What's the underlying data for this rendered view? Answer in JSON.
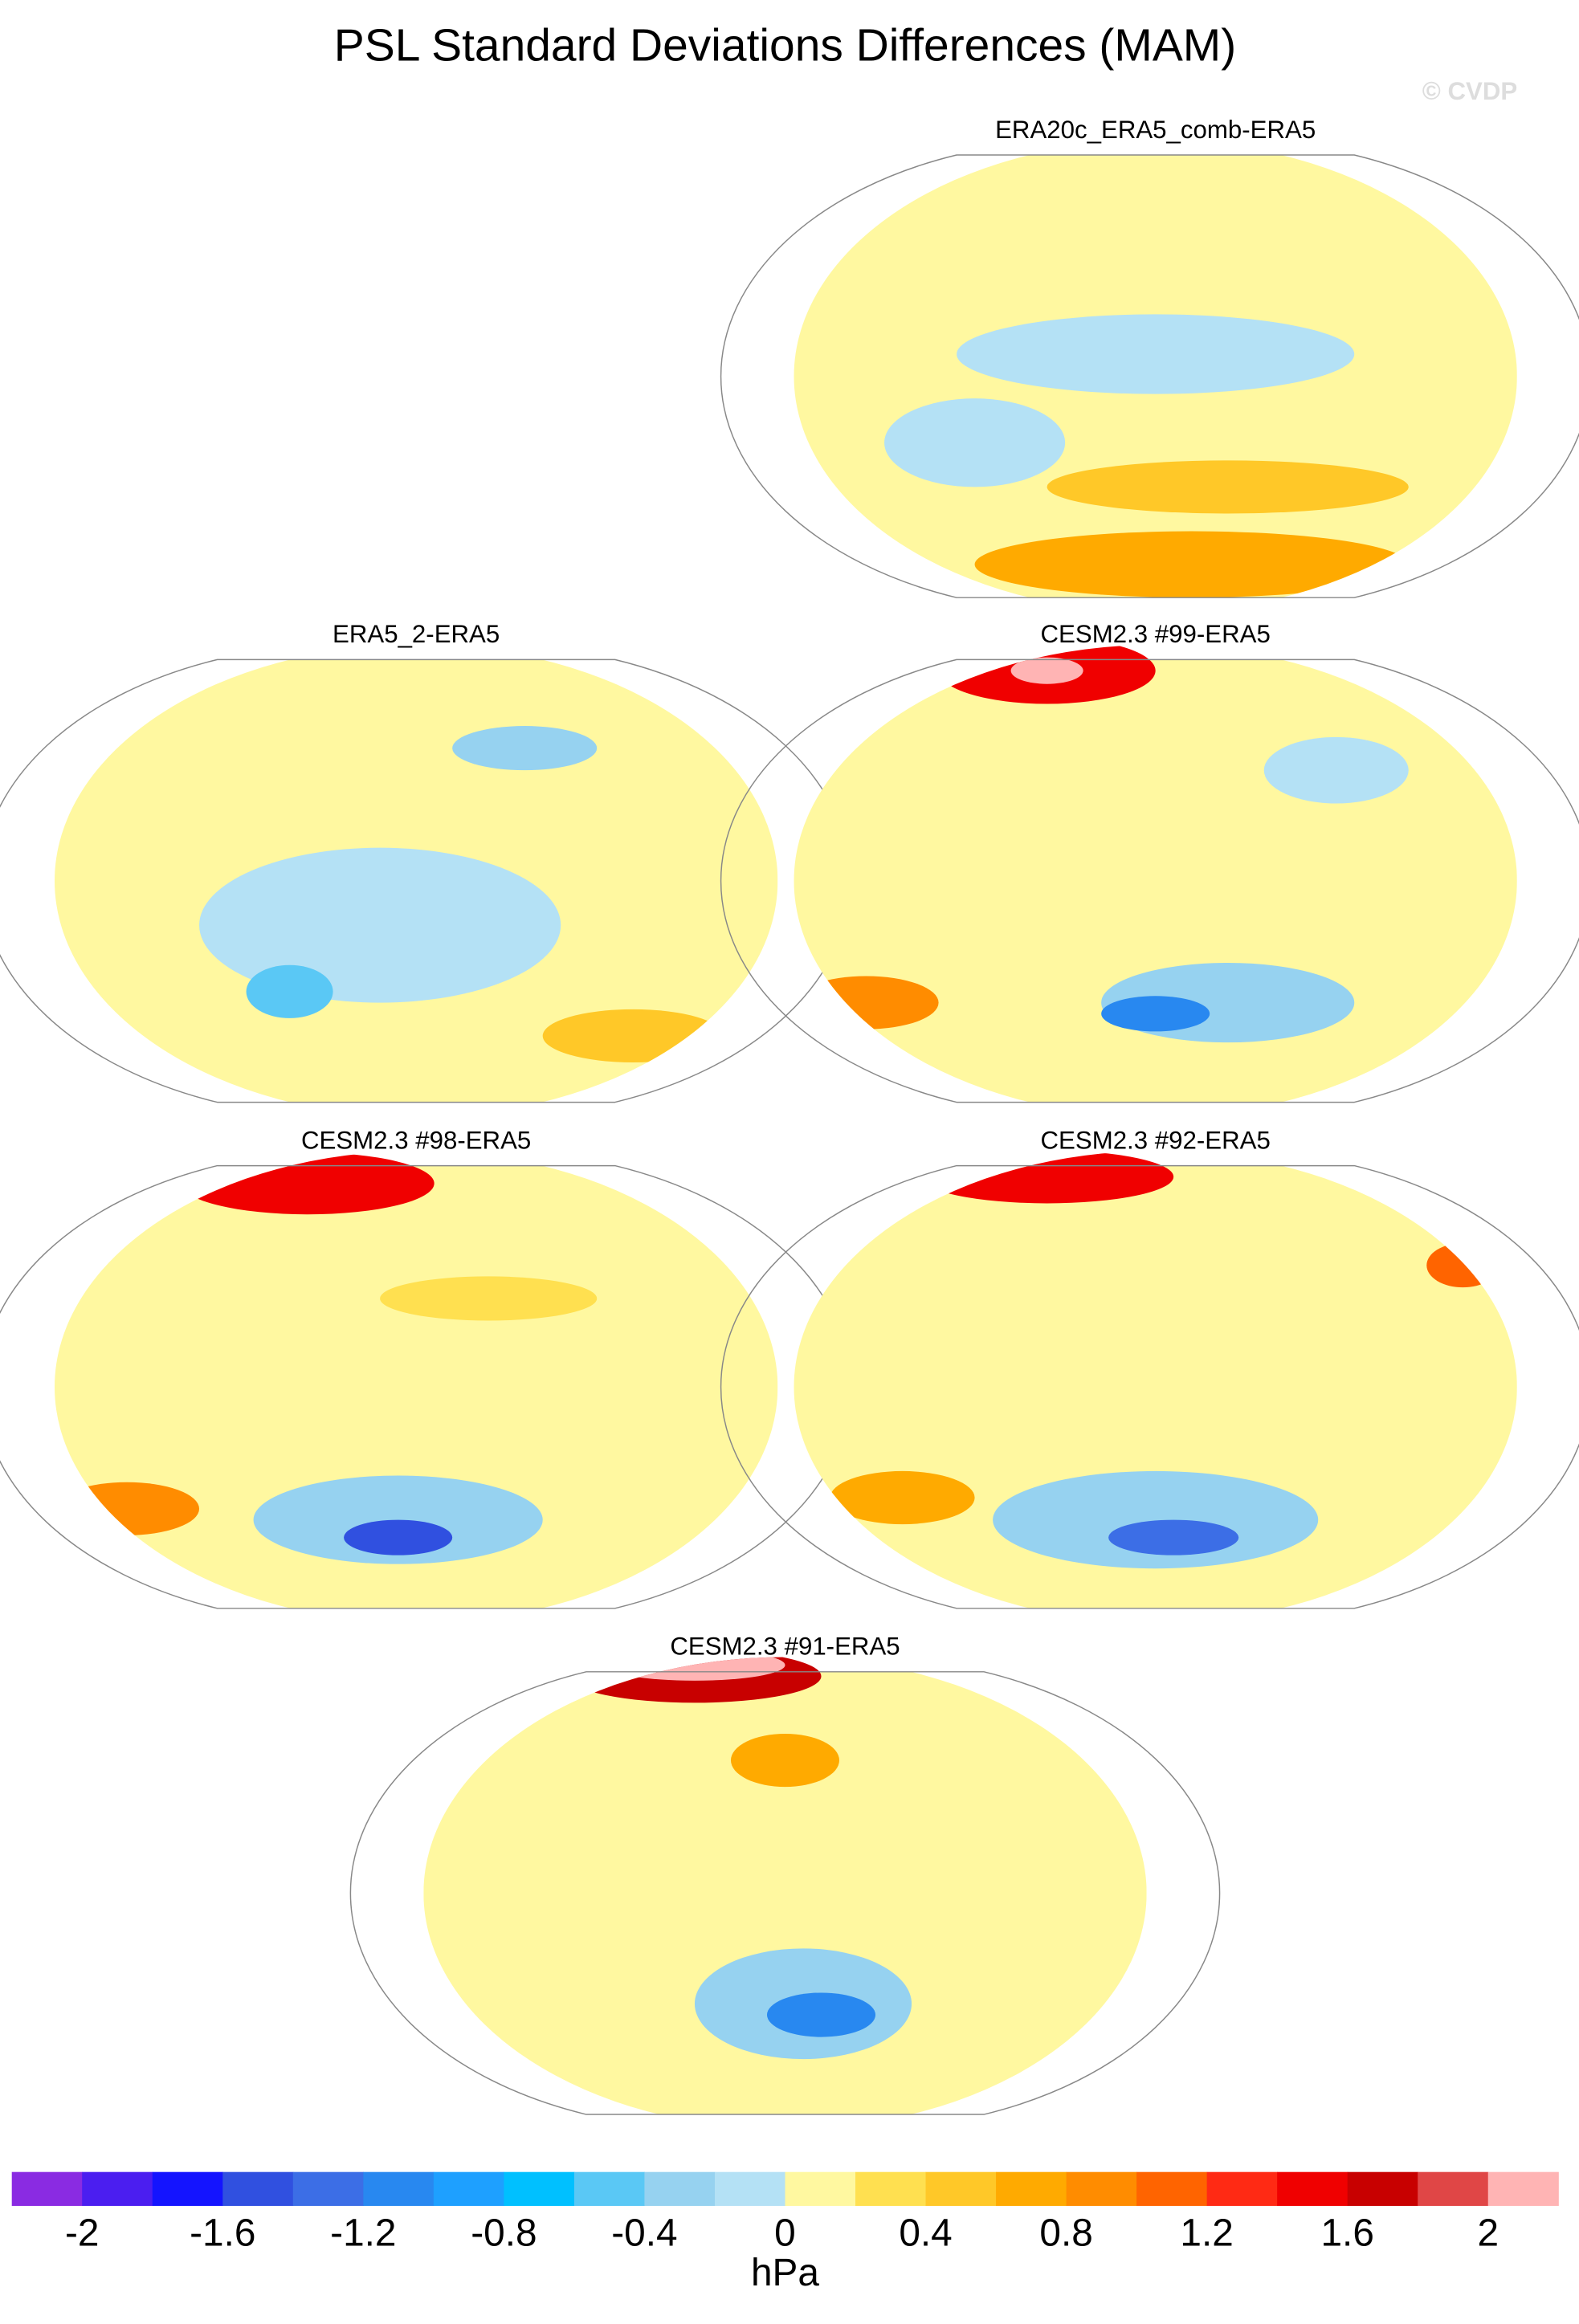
{
  "title": "PSL Standard Deviations Differences (MAM)",
  "watermark": "© CVDP",
  "panels": [
    {
      "title": "ERA20c_ERA5_comb-ERA5"
    },
    {
      "title": "ERA5_2-ERA5"
    },
    {
      "title": "CESM2.3 #99-ERA5"
    },
    {
      "title": "CESM2.3 #98-ERA5"
    },
    {
      "title": "CESM2.3 #92-ERA5"
    },
    {
      "title": "CESM2.3 #91-ERA5"
    }
  ],
  "colorbar": {
    "ticks": [
      -2,
      -1.6,
      -1.2,
      -0.8,
      -0.4,
      0,
      0.4,
      0.8,
      1.2,
      1.6,
      2
    ],
    "colors": [
      "#8a2be2",
      "#4b1ef0",
      "#1414ff",
      "#3050e0",
      "#3c6ee6",
      "#2888f0",
      "#1ea0ff",
      "#00c0ff",
      "#5ac8f5",
      "#96d2f0",
      "#b4e1f5",
      "#fff8a0",
      "#ffe050",
      "#ffc828",
      "#ffaa00",
      "#ff8c00",
      "#ff6400",
      "#ff2a14",
      "#f00000",
      "#c80000",
      "#e04646",
      "#ffb4b4"
    ],
    "units": "hPa"
  }
}
